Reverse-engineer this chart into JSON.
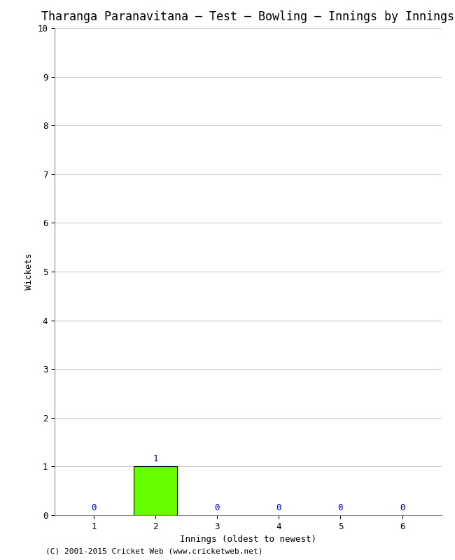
{
  "title": "Tharanga Paranavitana – Test – Bowling – Innings by Innings",
  "xlabel": "Innings (oldest to newest)",
  "ylabel": "Wickets",
  "innings": [
    1,
    2,
    3,
    4,
    5,
    6
  ],
  "wickets": [
    0,
    1,
    0,
    0,
    0,
    0
  ],
  "bar_color": "#66ff00",
  "bar_edge_color": "#000000",
  "label_color": "#0000cc",
  "ylim": [
    0,
    10
  ],
  "yticks": [
    0,
    1,
    2,
    3,
    4,
    5,
    6,
    7,
    8,
    9,
    10
  ],
  "xticks": [
    1,
    2,
    3,
    4,
    5,
    6
  ],
  "background_color": "#ffffff",
  "plot_bg_color": "#ffffff",
  "grid_color": "#cccccc",
  "footer": "(C) 2001-2015 Cricket Web (www.cricketweb.net)",
  "title_fontsize": 12,
  "label_fontsize": 9,
  "tick_fontsize": 9,
  "footer_fontsize": 8,
  "bar_width": 0.7
}
